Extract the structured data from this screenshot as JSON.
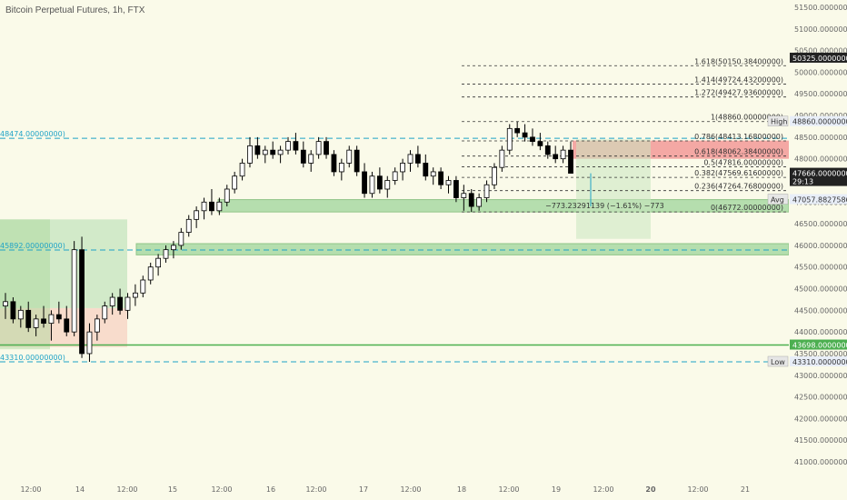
{
  "header": {
    "title": "Bitcoin Perpetual Futures, 1h, FTX"
  },
  "colors": {
    "background": "#fafae9",
    "up": "#ffffff",
    "down": "#000000",
    "support_zone": "#7ec87e",
    "supply_zone": "#f28c8c",
    "dashed_level": "#1fa3c7",
    "fib_line": "#333333",
    "green_line": "#4caf50"
  },
  "chart_data": {
    "type": "candlestick",
    "title": "Bitcoin Perpetual Futures, 1h, FTX",
    "ylim": [
      40800,
      51200
    ],
    "y_ticks": [
      "51500.00000000",
      "51000.00000000",
      "50500.00000000",
      "50000.00000000",
      "49500.00000000",
      "49000.00000000",
      "48500.00000000",
      "48000.00000000",
      "47500.00000000",
      "47000.00000000",
      "46500.00000000",
      "46000.00000000",
      "45500.00000000",
      "45000.00000000",
      "44500.00000000",
      "44000.00000000",
      "43500.00000000",
      "43000.00000000",
      "42500.00000000",
      "42000.00000000",
      "41500.00000000",
      "41000.00000000"
    ],
    "x_ticks": [
      "12:00",
      "14",
      "12:00",
      "15",
      "12:00",
      "16",
      "12:00",
      "17",
      "12:00",
      "18",
      "12:00",
      "19",
      "12:00",
      "20",
      "12:00",
      "21"
    ],
    "price_badges": [
      {
        "label": "50325.00000000",
        "value": 50325,
        "style": "dark"
      },
      {
        "label": "High",
        "value": 48860,
        "price": "48860.00000000"
      },
      {
        "label": "47666.00000000",
        "sub": "29:13",
        "value": 47666,
        "style": "dark"
      },
      {
        "label": "Avg",
        "value": 47057.88,
        "price": "47057.88275862"
      },
      {
        "label": "43698.00000000",
        "value": 43698,
        "style": "green"
      },
      {
        "label": "Low",
        "value": 43310,
        "price": "43310.00000000"
      }
    ],
    "dashed_levels": [
      {
        "label": "48474.00000000)",
        "value": 48474
      },
      {
        "label": "45892.00000000)",
        "value": 45892
      },
      {
        "label": "43310.00000000)",
        "value": 43310
      }
    ],
    "fib_levels": [
      {
        "label": "1.618(50150.38400000)",
        "value": 50150.384
      },
      {
        "label": "1.414(49724.43200000)",
        "value": 49724.432
      },
      {
        "label": "1.272(49427.93600000)",
        "value": 49427.936
      },
      {
        "label": "1(48860.00000000)",
        "value": 48860
      },
      {
        "label": "0.786(48413.16800000)",
        "value": 48413.168
      },
      {
        "label": "0.618(48062.38400000)",
        "value": 48062.384
      },
      {
        "label": "0.5(47816.00000000)",
        "value": 47816
      },
      {
        "label": "0.382(47569.61600000)",
        "value": 47569.616
      },
      {
        "label": "0.236(47264.76800000)",
        "value": 47264.768
      },
      {
        "label": "0(46772.00000000)",
        "value": 46772
      }
    ],
    "measure_label": "−773.23291139 (−1.61%) −773",
    "zones": [
      {
        "kind": "support",
        "from": 46772,
        "to": 47057
      },
      {
        "kind": "support",
        "from": 45780,
        "to": 46040
      },
      {
        "kind": "supply",
        "from": 48000,
        "to": 48420
      }
    ],
    "green_line": 43698,
    "candles": [
      [
        44600,
        44900,
        44300,
        44700
      ],
      [
        44700,
        44800,
        44200,
        44300
      ],
      [
        44300,
        44600,
        44100,
        44500
      ],
      [
        44500,
        44700,
        44000,
        44100
      ],
      [
        44100,
        44400,
        43900,
        44300
      ],
      [
        44300,
        44600,
        44100,
        44200
      ],
      [
        44200,
        44500,
        43800,
        44400
      ],
      [
        44400,
        44700,
        44200,
        44300
      ],
      [
        44300,
        44600,
        43900,
        44000
      ],
      [
        44000,
        46100,
        43900,
        45900
      ],
      [
        45900,
        46200,
        43400,
        43500
      ],
      [
        43500,
        44200,
        43310,
        44000
      ],
      [
        44000,
        44400,
        43800,
        44300
      ],
      [
        44300,
        44700,
        44200,
        44600
      ],
      [
        44600,
        44900,
        44400,
        44800
      ],
      [
        44800,
        45000,
        44400,
        44500
      ],
      [
        44500,
        44900,
        44300,
        44800
      ],
      [
        44800,
        45100,
        44600,
        44900
      ],
      [
        44900,
        45300,
        44800,
        45200
      ],
      [
        45200,
        45600,
        45100,
        45500
      ],
      [
        45500,
        45800,
        45300,
        45700
      ],
      [
        45700,
        46000,
        45600,
        45900
      ],
      [
        45900,
        46100,
        45700,
        46000
      ],
      [
        46000,
        46400,
        45900,
        46300
      ],
      [
        46300,
        46700,
        46200,
        46600
      ],
      [
        46600,
        46900,
        46400,
        46800
      ],
      [
        46800,
        47100,
        46600,
        47000
      ],
      [
        47000,
        47300,
        46700,
        46800
      ],
      [
        46800,
        47100,
        46700,
        47000
      ],
      [
        47000,
        47400,
        46900,
        47300
      ],
      [
        47300,
        47700,
        47200,
        47600
      ],
      [
        47600,
        48000,
        47500,
        47900
      ],
      [
        47900,
        48500,
        47800,
        48300
      ],
      [
        48300,
        48500,
        48000,
        48100
      ],
      [
        48100,
        48300,
        47900,
        48200
      ],
      [
        48200,
        48400,
        48000,
        48100
      ],
      [
        48100,
        48300,
        47900,
        48200
      ],
      [
        48200,
        48500,
        48100,
        48400
      ],
      [
        48400,
        48600,
        48100,
        48200
      ],
      [
        48200,
        48400,
        47800,
        47900
      ],
      [
        47900,
        48200,
        47700,
        48100
      ],
      [
        48100,
        48500,
        48000,
        48400
      ],
      [
        48400,
        48500,
        48000,
        48100
      ],
      [
        48100,
        48200,
        47600,
        47700
      ],
      [
        47700,
        48000,
        47500,
        47900
      ],
      [
        47900,
        48300,
        47800,
        48200
      ],
      [
        48200,
        48300,
        47600,
        47700
      ],
      [
        47700,
        47900,
        47100,
        47200
      ],
      [
        47200,
        47700,
        47100,
        47600
      ],
      [
        47600,
        47800,
        47200,
        47300
      ],
      [
        47300,
        47600,
        47100,
        47500
      ],
      [
        47500,
        47800,
        47400,
        47700
      ],
      [
        47700,
        48000,
        47500,
        47900
      ],
      [
        47900,
        48200,
        47700,
        48100
      ],
      [
        48100,
        48300,
        47800,
        47900
      ],
      [
        47900,
        48100,
        47500,
        47600
      ],
      [
        47600,
        47800,
        47400,
        47700
      ],
      [
        47700,
        47800,
        47300,
        47400
      ],
      [
        47400,
        47600,
        47200,
        47500
      ],
      [
        47500,
        47600,
        47000,
        47100
      ],
      [
        47100,
        47400,
        46800,
        47200
      ],
      [
        47200,
        47300,
        46772,
        46900
      ],
      [
        46900,
        47200,
        46800,
        47100
      ],
      [
        47100,
        47500,
        47000,
        47400
      ],
      [
        47400,
        47900,
        47300,
        47800
      ],
      [
        47800,
        48300,
        47700,
        48200
      ],
      [
        48200,
        48800,
        48100,
        48700
      ],
      [
        48700,
        48860,
        48500,
        48600
      ],
      [
        48600,
        48800,
        48400,
        48500
      ],
      [
        48500,
        48700,
        48300,
        48400
      ],
      [
        48400,
        48600,
        48200,
        48300
      ],
      [
        48300,
        48400,
        48000,
        48100
      ],
      [
        48100,
        48300,
        47900,
        48000
      ],
      [
        48000,
        48300,
        47900,
        48200
      ],
      [
        48200,
        48400,
        47700,
        47666
      ]
    ]
  }
}
